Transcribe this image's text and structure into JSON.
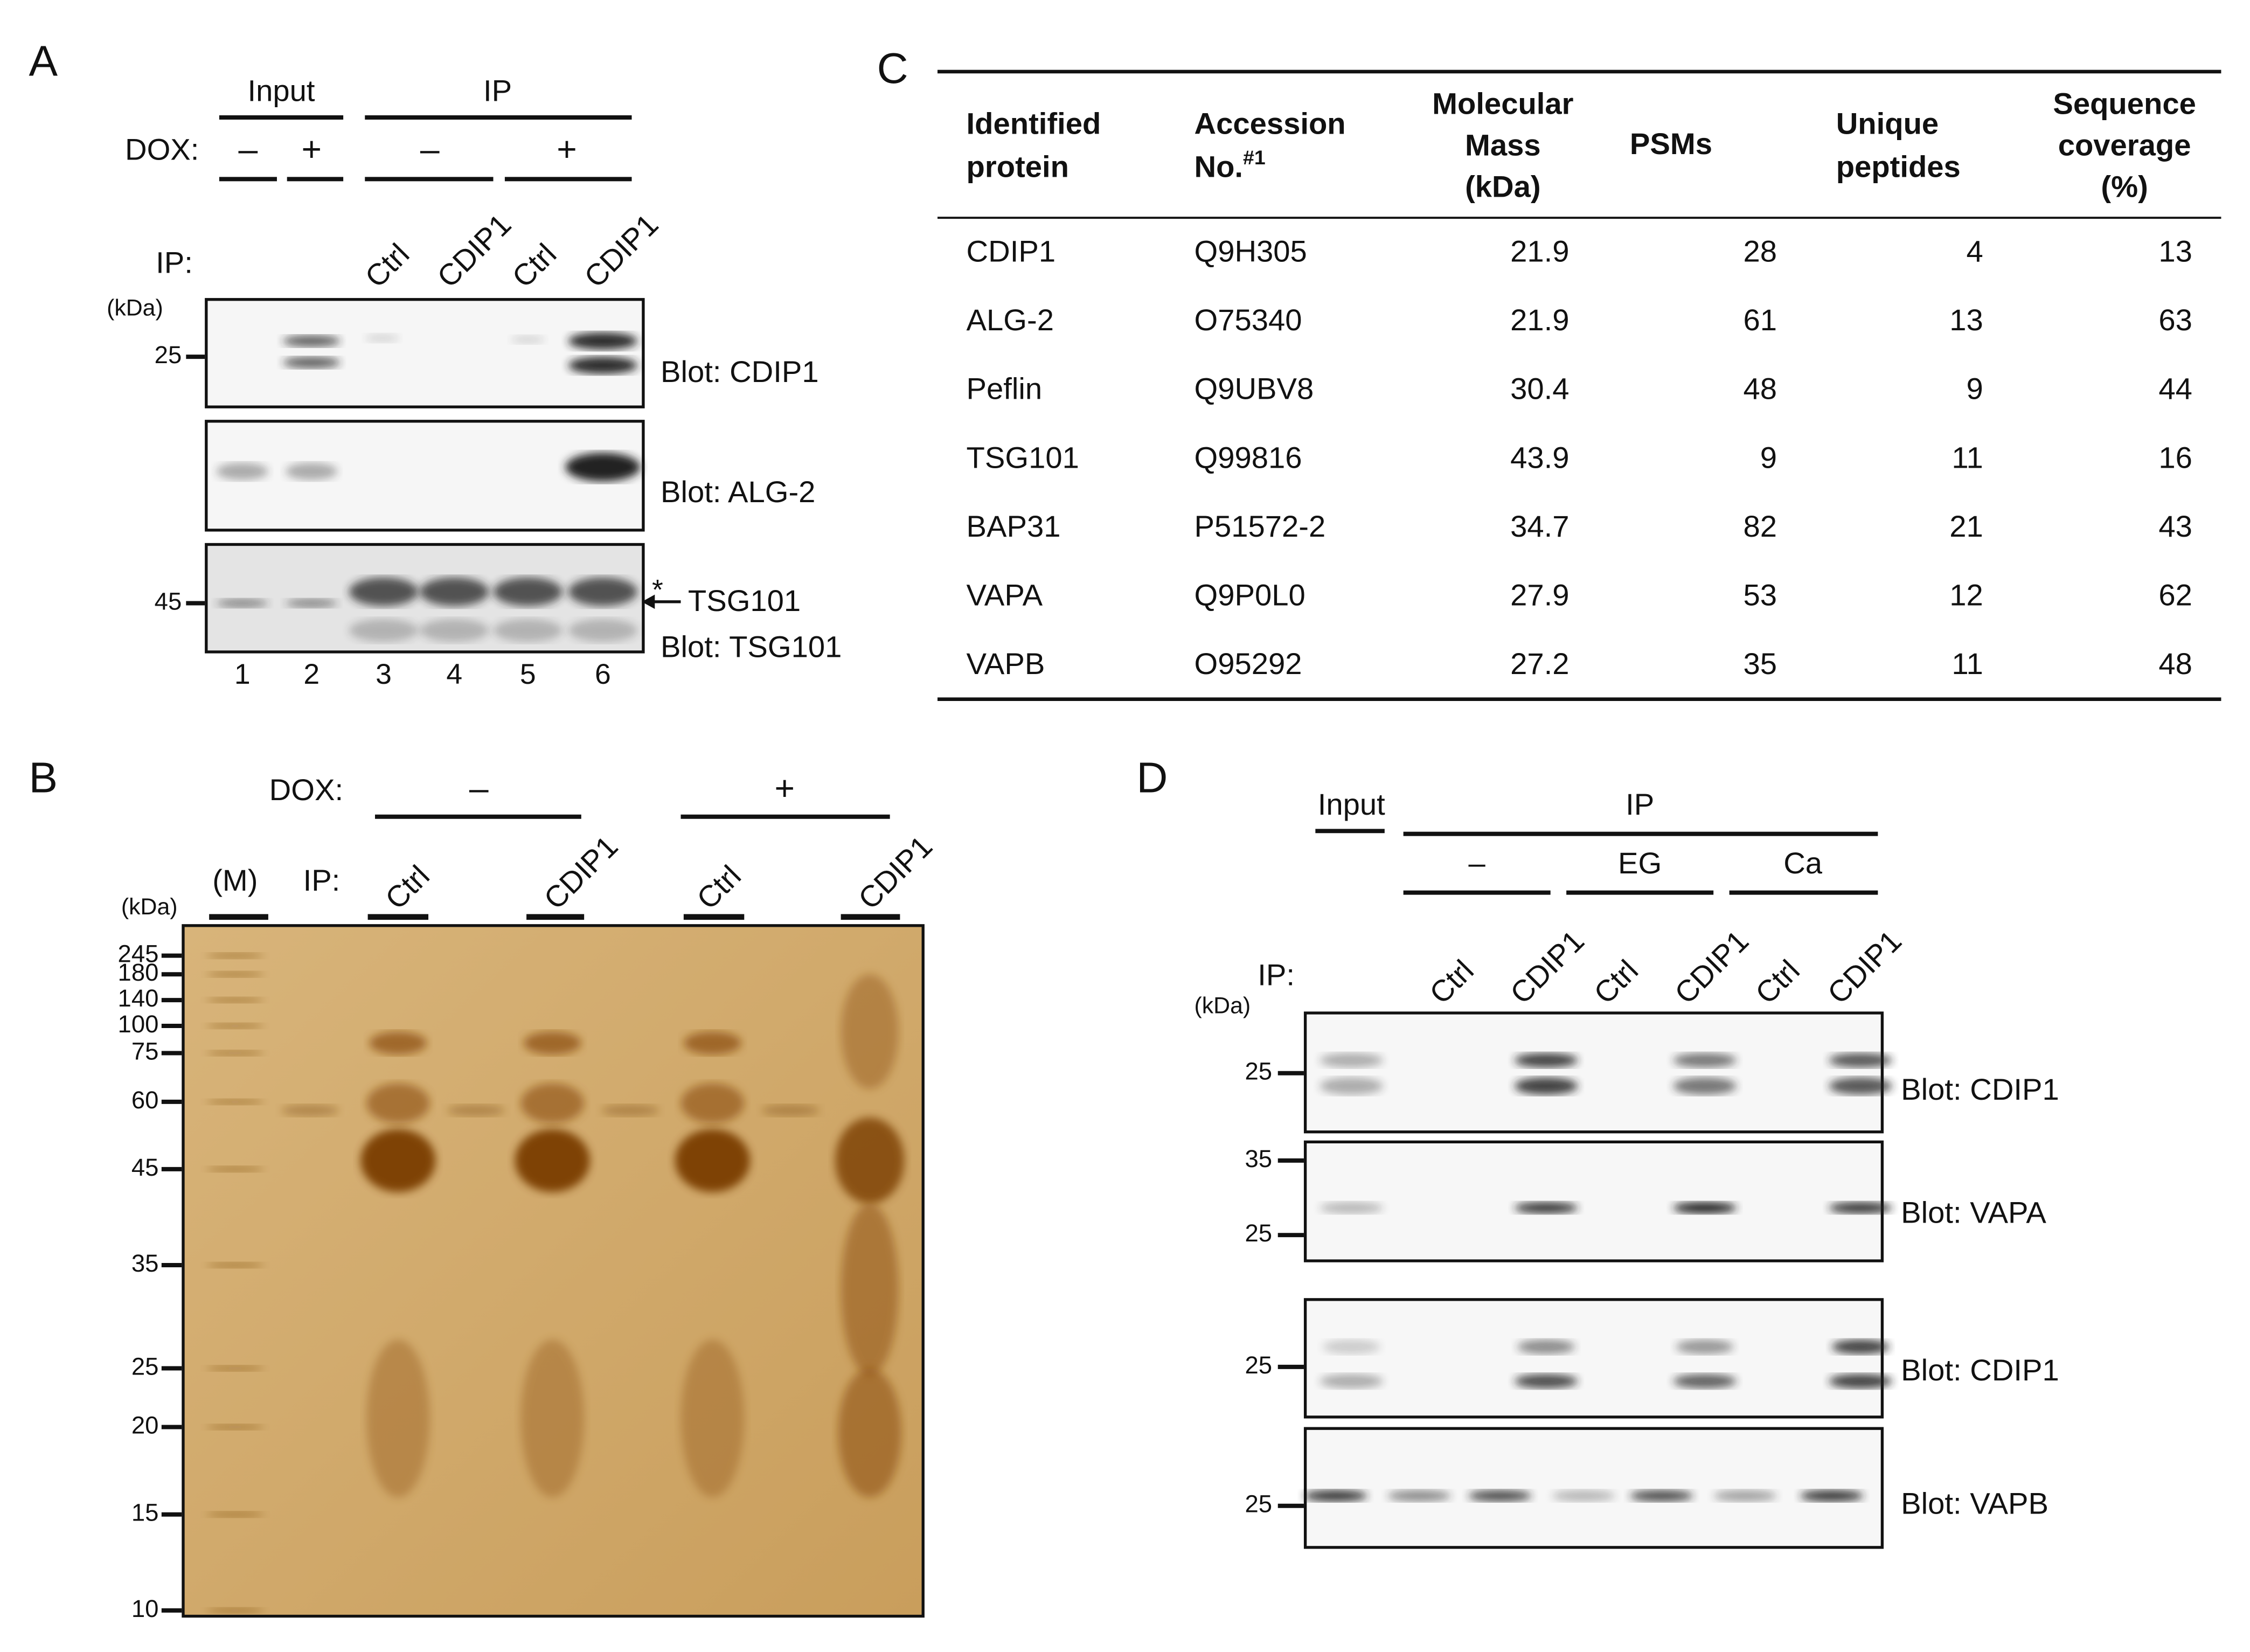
{
  "panel_a": {
    "letter": "A",
    "groups": [
      "Input",
      "IP"
    ],
    "dox_label": "DOX:",
    "dox": [
      "–",
      "+",
      "–",
      "+"
    ],
    "ip_label": "IP:",
    "lanes": [
      "Ctrl",
      "CDIP1",
      "Ctrl",
      "CDIP1"
    ],
    "kda": "(kDa)",
    "blots": [
      {
        "label": "Blot: CDIP1",
        "markers": [
          "25"
        ]
      },
      {
        "label": "Blot: ALG-2",
        "markers": []
      },
      {
        "label": "Blot: TSG101",
        "markers": [
          "45"
        ]
      }
    ],
    "asterisk": "*",
    "arrow_label": "TSG101",
    "lane_numbers": [
      "1",
      "2",
      "3",
      "4",
      "5",
      "6"
    ]
  },
  "panel_b": {
    "letter": "B",
    "dox_label": "DOX:",
    "dox": [
      "–",
      "+"
    ],
    "marker_lane": "(M)",
    "ip_label": "IP:",
    "lanes": [
      "Ctrl",
      "CDIP1",
      "Ctrl",
      "CDIP1"
    ],
    "kda": "(kDa)",
    "markers": [
      "245",
      "180",
      "140",
      "100",
      "75",
      "60",
      "45",
      "35",
      "25",
      "20",
      "15",
      "10"
    ]
  },
  "panel_c": {
    "letter": "C",
    "table": {
      "header": [
        [
          "Identified",
          "protein"
        ],
        [
          "Accession",
          "No."
        ],
        [
          "Molecular",
          "Mass",
          "(kDa)"
        ],
        [
          "PSMs"
        ],
        [
          "Unique",
          "peptides"
        ],
        [
          "Sequence",
          "coverage",
          "(%)"
        ]
      ],
      "accession_mark": "#1",
      "rows": [
        [
          "CDIP1",
          "Q9H305",
          "21.9",
          "28",
          "4",
          "13"
        ],
        [
          "ALG-2",
          "O75340",
          "21.9",
          "61",
          "13",
          "63"
        ],
        [
          "Peflin",
          "Q9UBV8",
          "30.4",
          "48",
          "9",
          "44"
        ],
        [
          "TSG101",
          "Q99816",
          "43.9",
          "9",
          "11",
          "16"
        ],
        [
          "BAP31",
          "P51572-2",
          "34.7",
          "82",
          "21",
          "43"
        ],
        [
          "VAPA",
          "Q9P0L0",
          "27.9",
          "53",
          "12",
          "62"
        ],
        [
          "VAPB",
          "O95292",
          "27.2",
          "35",
          "11",
          "48"
        ]
      ]
    }
  },
  "panel_d": {
    "letter": "D",
    "groups": [
      "Input",
      "IP"
    ],
    "conditions": [
      "–",
      "EG",
      "Ca"
    ],
    "ip_label": "IP:",
    "lanes": [
      "Ctrl",
      "CDIP1",
      "Ctrl",
      "CDIP1",
      "Ctrl",
      "CDIP1"
    ],
    "kda": "(kDa)",
    "blots": [
      {
        "label": "Blot: CDIP1",
        "markers": [
          "25"
        ]
      },
      {
        "label": "Blot: VAPA",
        "markers": [
          "35",
          "25"
        ]
      },
      {
        "label": "Blot: CDIP1",
        "markers": [
          "25"
        ]
      },
      {
        "label": "Blot: VAPB",
        "markers": [
          "25"
        ]
      }
    ]
  }
}
